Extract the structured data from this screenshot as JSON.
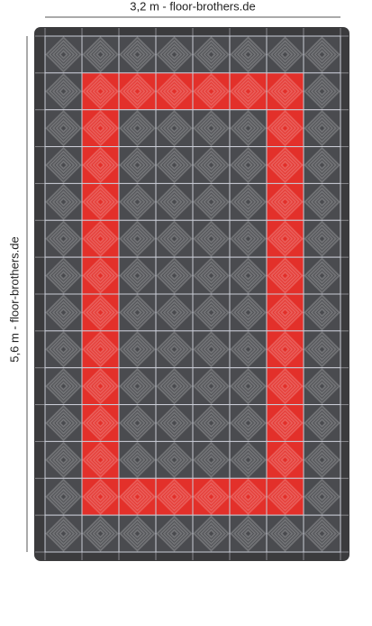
{
  "dimensions": {
    "width_label": "3,2 m - floor-brothers.de",
    "height_label": "5,6 m - floor-brothers.de"
  },
  "tile_colors": {
    "dark": "#4a4b4f",
    "red": "#e3302a"
  },
  "tiles": [
    [
      "dark",
      "dark",
      "dark",
      "dark",
      "dark",
      "dark",
      "dark",
      "dark"
    ],
    [
      "dark",
      "red",
      "red",
      "red",
      "red",
      "red",
      "red",
      "dark"
    ],
    [
      "dark",
      "red",
      "dark",
      "dark",
      "dark",
      "dark",
      "red",
      "dark"
    ],
    [
      "dark",
      "red",
      "dark",
      "dark",
      "dark",
      "dark",
      "red",
      "dark"
    ],
    [
      "dark",
      "red",
      "dark",
      "dark",
      "dark",
      "dark",
      "red",
      "dark"
    ],
    [
      "dark",
      "red",
      "dark",
      "dark",
      "dark",
      "dark",
      "red",
      "dark"
    ],
    [
      "dark",
      "red",
      "dark",
      "dark",
      "dark",
      "dark",
      "red",
      "dark"
    ],
    [
      "dark",
      "red",
      "dark",
      "dark",
      "dark",
      "dark",
      "red",
      "dark"
    ],
    [
      "dark",
      "red",
      "dark",
      "dark",
      "dark",
      "dark",
      "red",
      "dark"
    ],
    [
      "dark",
      "red",
      "dark",
      "dark",
      "dark",
      "dark",
      "red",
      "dark"
    ],
    [
      "dark",
      "red",
      "dark",
      "dark",
      "dark",
      "dark",
      "red",
      "dark"
    ],
    [
      "dark",
      "red",
      "dark",
      "dark",
      "dark",
      "dark",
      "red",
      "dark"
    ],
    [
      "dark",
      "red",
      "red",
      "red",
      "red",
      "red",
      "red",
      "dark"
    ],
    [
      "dark",
      "dark",
      "dark",
      "dark",
      "dark",
      "dark",
      "dark",
      "dark"
    ]
  ]
}
